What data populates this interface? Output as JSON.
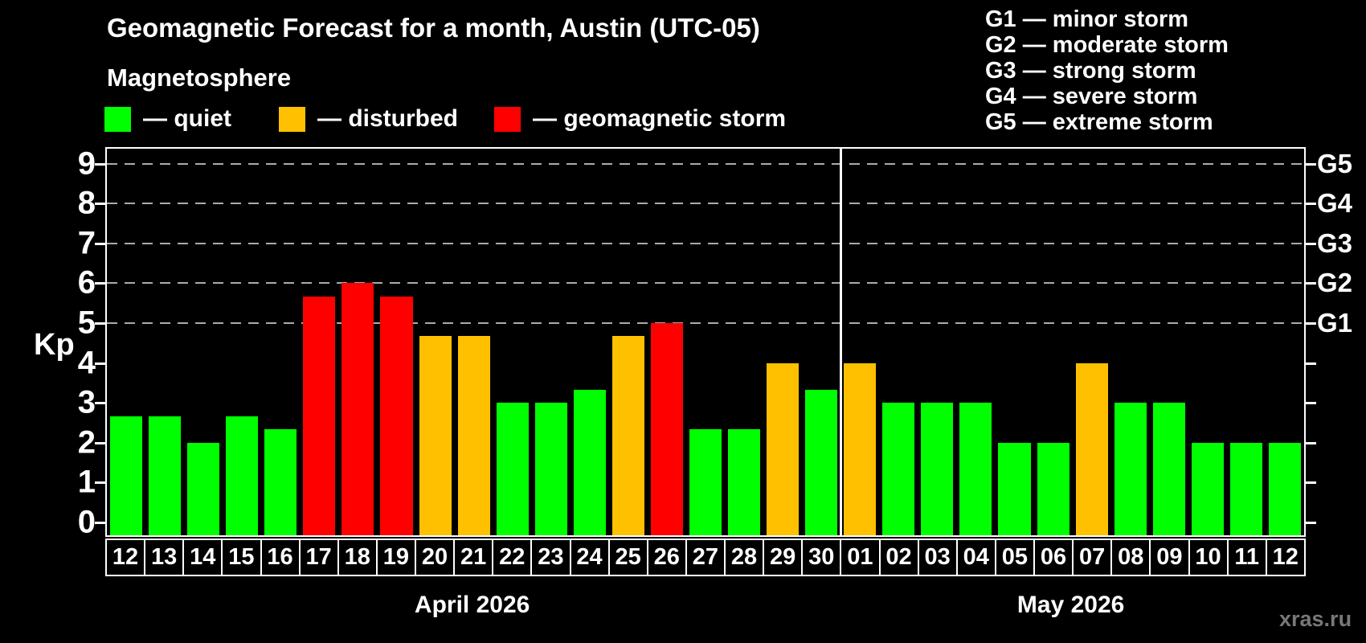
{
  "title": "Geomagnetic Forecast for a month, Austin (UTC-05)",
  "subtitle": "Magnetosphere",
  "watermark": "xras.ru",
  "legend": [
    {
      "name": "quiet",
      "label": "— quiet",
      "color": "#00ff00"
    },
    {
      "name": "disturbed",
      "label": "— disturbed",
      "color": "#ffc000"
    },
    {
      "name": "storm",
      "label": "— geomagnetic storm",
      "color": "#ff0000"
    }
  ],
  "storm_scale_legend": [
    "G1 — minor storm",
    "G2 — moderate storm",
    "G3 — strong storm",
    "G4 — severe storm",
    "G5 — extreme storm"
  ],
  "y_axis": {
    "label": "Kp",
    "ticks": [
      0,
      1,
      2,
      3,
      4,
      5,
      6,
      7,
      8,
      9
    ]
  },
  "right_axis": {
    "labels": [
      {
        "label": "G1",
        "kp": 5
      },
      {
        "label": "G2",
        "kp": 6
      },
      {
        "label": "G3",
        "kp": 7
      },
      {
        "label": "G4",
        "kp": 8
      },
      {
        "label": "G5",
        "kp": 9
      }
    ]
  },
  "chart_data": {
    "type": "bar",
    "title": "Geomagnetic Forecast for a month, Austin (UTC-05)",
    "xlabel": "",
    "ylabel": "Kp",
    "ylim": [
      0,
      9
    ],
    "grid": "dashed horizontal at Kp 5-9 only",
    "legend_position": "top-left",
    "groups": [
      {
        "label": "April 2026",
        "days": 19
      },
      {
        "label": "May 2026",
        "days": 12
      }
    ],
    "categories": [
      "12",
      "13",
      "14",
      "15",
      "16",
      "17",
      "18",
      "19",
      "20",
      "21",
      "22",
      "23",
      "24",
      "25",
      "26",
      "27",
      "28",
      "29",
      "30",
      "01",
      "02",
      "03",
      "04",
      "05",
      "06",
      "07",
      "08",
      "09",
      "10",
      "11",
      "12"
    ],
    "values": [
      2.67,
      2.67,
      2.0,
      2.67,
      2.33,
      5.67,
      6.0,
      5.67,
      4.67,
      4.67,
      3.0,
      3.0,
      3.33,
      4.67,
      5.0,
      2.33,
      2.33,
      4.0,
      3.33,
      4.0,
      3.0,
      3.0,
      3.0,
      2.0,
      2.0,
      4.0,
      3.0,
      3.0,
      2.0,
      2.0,
      2.0
    ],
    "statuses": [
      "quiet",
      "quiet",
      "quiet",
      "quiet",
      "quiet",
      "storm",
      "storm",
      "storm",
      "disturbed",
      "disturbed",
      "quiet",
      "quiet",
      "quiet",
      "disturbed",
      "storm",
      "quiet",
      "quiet",
      "disturbed",
      "quiet",
      "disturbed",
      "quiet",
      "quiet",
      "quiet",
      "quiet",
      "quiet",
      "disturbed",
      "quiet",
      "quiet",
      "quiet",
      "quiet",
      "quiet"
    ],
    "colors": {
      "quiet": "#00ff00",
      "disturbed": "#ffc000",
      "storm": "#ff0000"
    }
  }
}
